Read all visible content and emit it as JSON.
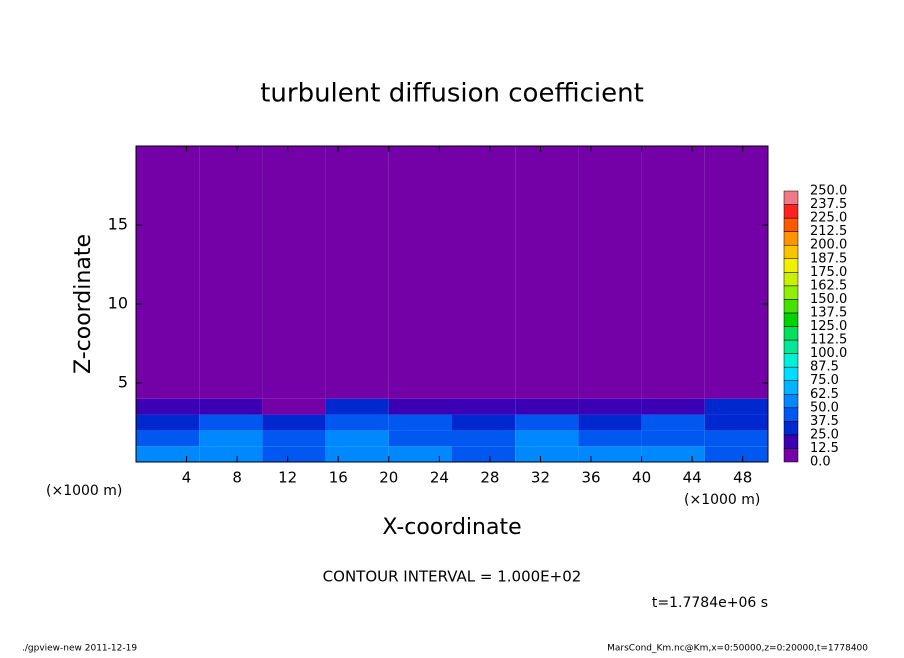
{
  "chart_data": {
    "type": "contour",
    "title": "turbulent diffusion coefficient",
    "x_label": "X-coordinate",
    "y_label": "Z-coordinate",
    "x_unit_label": "(×1000 m)",
    "contour_interval": "CONTOUR INTERVAL = 1.000E+02",
    "time_label": "t=1.7784e+06 s",
    "footer_left": "./gpview-new  2011-12-19",
    "footer_right": "MarsCond_Km.nc@Km,x=0:50000,z=0:20000,t=1778400",
    "xlim": [
      0,
      50
    ],
    "ylim": [
      0,
      20
    ],
    "xticks": [
      4,
      8,
      12,
      16,
      20,
      24,
      28,
      32,
      36,
      40,
      44,
      48
    ],
    "yticks": [
      5,
      10,
      15
    ],
    "x_edges": [
      0,
      5,
      10,
      15,
      20,
      25,
      30,
      35,
      40,
      45,
      50
    ],
    "z_edges": [
      0,
      1,
      2,
      3,
      4,
      5,
      20
    ],
    "values": [
      [
        50,
        55,
        45,
        60,
        50,
        45,
        55,
        50,
        50,
        45
      ],
      [
        45,
        50,
        40,
        55,
        45,
        40,
        50,
        45,
        45,
        40
      ],
      [
        35,
        40,
        30,
        45,
        40,
        35,
        40,
        35,
        40,
        35
      ],
      [
        20,
        15,
        10,
        30,
        20,
        15,
        20,
        15,
        20,
        25
      ],
      [
        5,
        0,
        0,
        10,
        0,
        0,
        0,
        0,
        5,
        5
      ],
      [
        0,
        0,
        0,
        0,
        0,
        0,
        0,
        0,
        0,
        0
      ]
    ],
    "levels": [
      {
        "value": 0,
        "label": "0.0"
      },
      {
        "value": 12.5,
        "label": "12.5"
      },
      {
        "value": 25,
        "label": "25.0"
      },
      {
        "value": 37.5,
        "label": "37.5"
      },
      {
        "value": 50,
        "label": "50.0"
      },
      {
        "value": 62.5,
        "label": "62.5"
      },
      {
        "value": 75,
        "label": "75.0"
      },
      {
        "value": 87.5,
        "label": "87.5"
      },
      {
        "value": 100,
        "label": "100.0"
      },
      {
        "value": 112.5,
        "label": "112.5"
      },
      {
        "value": 125,
        "label": "125.0"
      },
      {
        "value": 137.5,
        "label": "137.5"
      },
      {
        "value": 150,
        "label": "150.0"
      },
      {
        "value": 162.5,
        "label": "162.5"
      },
      {
        "value": 175,
        "label": "175.0"
      },
      {
        "value": 187.5,
        "label": "187.5"
      },
      {
        "value": 200,
        "label": "200.0"
      },
      {
        "value": 212.5,
        "label": "212.5"
      },
      {
        "value": 225,
        "label": "225.0"
      },
      {
        "value": 237.5,
        "label": "237.5"
      },
      {
        "value": 250,
        "label": "250.0"
      }
    ],
    "colors": [
      "#7400a8",
      "#3c00b4",
      "#0028d0",
      "#0058f0",
      "#0088ff",
      "#00b4ff",
      "#00dcff",
      "#00f0d8",
      "#00e898",
      "#00e058",
      "#00d400",
      "#44e000",
      "#90f000",
      "#c8f000",
      "#f0f000",
      "#f8c400",
      "#ff9400",
      "#ff5800",
      "#ff2020",
      "#f07888"
    ]
  }
}
